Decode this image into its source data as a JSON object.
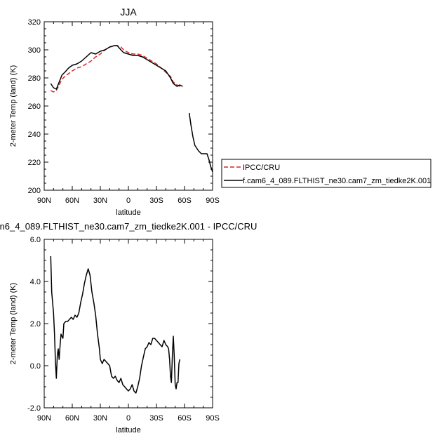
{
  "chart_data": [
    {
      "type": "line",
      "title": "JJA",
      "xlabel": "latitude",
      "ylabel": "2-meter Temp (land) (K)",
      "xlim": [
        90,
        -90
      ],
      "ylim": [
        200,
        320
      ],
      "xticks": [
        90,
        60,
        30,
        0,
        -30,
        -60,
        -90
      ],
      "xtick_labels": [
        "90N",
        "60N",
        "30N",
        "0",
        "30S",
        "60S",
        "90S"
      ],
      "yticks": [
        200,
        220,
        240,
        260,
        280,
        300,
        320
      ],
      "ytick_labels": [
        "200",
        "220",
        "240",
        "260",
        "280",
        "300",
        "320"
      ],
      "legend_position": "right",
      "series": [
        {
          "name": "IPCC/CRU",
          "color": "#d62728",
          "dash": "dashed",
          "segments": [
            [
              [
                83,
                271
              ],
              [
                80,
                270
              ],
              [
                77,
                271
              ],
              [
                74,
                275
              ],
              [
                71,
                279
              ],
              [
                68,
                281
              ],
              [
                64,
                283
              ],
              [
                60,
                285
              ],
              [
                55,
                287
              ],
              [
                50,
                288
              ],
              [
                45,
                290
              ],
              [
                40,
                292
              ],
              [
                35,
                295
              ],
              [
                30,
                297
              ],
              [
                25,
                300
              ],
              [
                20,
                302
              ],
              [
                15,
                303
              ],
              [
                12,
                303
              ],
              [
                8,
                302
              ],
              [
                5,
                300
              ],
              [
                0,
                298
              ],
              [
                -5,
                297
              ],
              [
                -10,
                297
              ],
              [
                -15,
                296
              ],
              [
                -20,
                294
              ],
              [
                -25,
                292
              ],
              [
                -30,
                290
              ],
              [
                -35,
                287
              ],
              [
                -40,
                284
              ],
              [
                -45,
                281
              ],
              [
                -48,
                277
              ],
              [
                -50,
                276
              ],
              [
                -52,
                275
              ],
              [
                -55,
                274
              ],
              [
                -58,
                274
              ]
            ]
          ]
        },
        {
          "name": "f.cam6_4_089.FLTHIST_ne30.cam7_zm_tiedke2K.001",
          "color": "#000000",
          "dash": "solid",
          "segments": [
            [
              [
                83,
                276
              ],
              [
                80,
                273
              ],
              [
                77,
                272
              ],
              [
                74,
                277
              ],
              [
                71,
                282
              ],
              [
                68,
                284
              ],
              [
                64,
                287
              ],
              [
                60,
                289
              ],
              [
                55,
                290
              ],
              [
                50,
                292
              ],
              [
                45,
                295
              ],
              [
                40,
                298
              ],
              [
                35,
                297
              ],
              [
                30,
                299
              ],
              [
                25,
                300
              ],
              [
                20,
                302
              ],
              [
                15,
                303
              ],
              [
                12,
                303
              ],
              [
                8,
                300
              ],
              [
                5,
                298
              ],
              [
                0,
                297
              ],
              [
                -5,
                296
              ],
              [
                -10,
                296
              ],
              [
                -15,
                295
              ],
              [
                -20,
                293
              ],
              [
                -25,
                291
              ],
              [
                -30,
                289
              ],
              [
                -35,
                287
              ],
              [
                -40,
                285
              ],
              [
                -45,
                280
              ],
              [
                -48,
                276
              ],
              [
                -50,
                275
              ],
              [
                -52,
                274
              ],
              [
                -55,
                275
              ],
              [
                -58,
                274
              ]
            ],
            [
              [
                -65,
                255
              ],
              [
                -67,
                246
              ],
              [
                -69,
                238
              ],
              [
                -71,
                232
              ],
              [
                -73,
                230
              ],
              [
                -75,
                228
              ],
              [
                -78,
                226
              ],
              [
                -81,
                226
              ],
              [
                -84,
                226
              ],
              [
                -86,
                222
              ],
              [
                -88,
                217
              ],
              [
                -90,
                213
              ]
            ]
          ]
        }
      ]
    },
    {
      "type": "line",
      "title": "n6_4_089.FLTHIST_ne30.cam7_zm_tiedke2K.001 - IPCC/CRU",
      "xlabel": "latitude",
      "ylabel": "2-meter Temp (land) (K)",
      "xlim": [
        90,
        -90
      ],
      "ylim": [
        -2,
        6
      ],
      "xticks": [
        90,
        60,
        30,
        0,
        -30,
        -60,
        -90
      ],
      "xtick_labels": [
        "90N",
        "60N",
        "30N",
        "0",
        "30S",
        "60S",
        "90S"
      ],
      "yticks": [
        -2,
        0,
        2,
        4,
        6
      ],
      "ytick_labels": [
        "-2.0",
        "0.0",
        "2.0",
        "4.0",
        "6.0"
      ],
      "series": [
        {
          "color": "#000000",
          "dash": "solid",
          "segments": [
            [
              [
                83,
                5.2
              ],
              [
                82,
                3.5
              ],
              [
                80,
                2.5
              ],
              [
                79,
                1.5
              ],
              [
                78,
                0.2
              ],
              [
                77,
                -0.6
              ],
              [
                76,
                0.5
              ],
              [
                75,
                0.8
              ],
              [
                74,
                0.3
              ],
              [
                73,
                1.0
              ],
              [
                72,
                1.5
              ],
              [
                71,
                1.4
              ],
              [
                70,
                1.3
              ],
              [
                69,
                2.0
              ],
              [
                67,
                2.1
              ],
              [
                65,
                2.1
              ],
              [
                63,
                2.2
              ],
              [
                61,
                2.3
              ],
              [
                59,
                2.2
              ],
              [
                57,
                2.4
              ],
              [
                55,
                2.3
              ],
              [
                53,
                2.5
              ],
              [
                51,
                3.0
              ],
              [
                49,
                3.4
              ],
              [
                47,
                3.9
              ],
              [
                45,
                4.3
              ],
              [
                43,
                4.6
              ],
              [
                41,
                4.3
              ],
              [
                39,
                3.5
              ],
              [
                37,
                3.0
              ],
              [
                35,
                2.4
              ],
              [
                33,
                1.5
              ],
              [
                31,
                0.8
              ],
              [
                30,
                0.3
              ],
              [
                28,
                0.1
              ],
              [
                26,
                0.3
              ],
              [
                24,
                0.2
              ],
              [
                22,
                0.1
              ],
              [
                20,
                0.0
              ],
              [
                18,
                -0.5
              ],
              [
                16,
                -0.6
              ],
              [
                14,
                -0.5
              ],
              [
                12,
                -0.7
              ],
              [
                10,
                -0.8
              ],
              [
                8,
                -0.6
              ],
              [
                6,
                -0.9
              ],
              [
                4,
                -1.0
              ],
              [
                2,
                -1.1
              ],
              [
                0,
                -1.2
              ],
              [
                -2,
                -1.1
              ],
              [
                -4,
                -0.9
              ],
              [
                -6,
                -1.2
              ],
              [
                -8,
                -1.3
              ],
              [
                -10,
                -1.0
              ],
              [
                -12,
                -0.6
              ],
              [
                -14,
                0.0
              ],
              [
                -16,
                0.4
              ],
              [
                -18,
                0.8
              ],
              [
                -20,
                0.9
              ],
              [
                -22,
                1.1
              ],
              [
                -24,
                1.0
              ],
              [
                -26,
                1.3
              ],
              [
                -28,
                1.3
              ],
              [
                -30,
                1.2
              ],
              [
                -32,
                1.1
              ],
              [
                -34,
                1.0
              ],
              [
                -36,
                0.9
              ],
              [
                -38,
                1.2
              ],
              [
                -40,
                1.0
              ],
              [
                -42,
                0.9
              ],
              [
                -43,
                0.8
              ],
              [
                -44,
                0.3
              ],
              [
                -45,
                -0.5
              ],
              [
                -46,
                -0.8
              ],
              [
                -47,
                0.5
              ],
              [
                -48,
                1.4
              ],
              [
                -49,
                0.5
              ],
              [
                -50,
                -0.9
              ],
              [
                -51,
                -1.1
              ],
              [
                -52,
                -0.8
              ],
              [
                -53,
                -0.8
              ],
              [
                -54,
                0.1
              ],
              [
                -55,
                0.3
              ]
            ]
          ]
        }
      ]
    }
  ]
}
